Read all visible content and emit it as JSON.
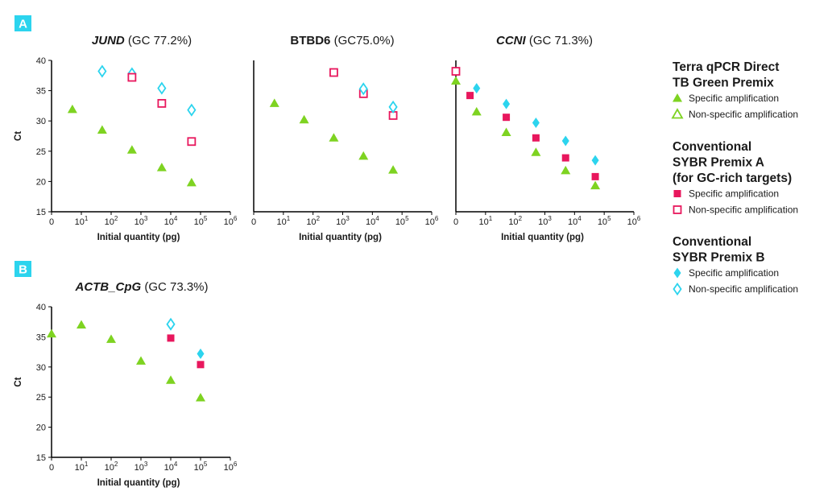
{
  "panels": [
    {
      "label": "A"
    },
    {
      "label": "B"
    }
  ],
  "legend": {
    "groups": [
      {
        "method": "terra",
        "title_lines": [
          "Terra qPCR Direct",
          "TB Green Premix"
        ],
        "entries": [
          {
            "label": "Specific amplification",
            "marker": "triangle",
            "filled": true,
            "color": "#7ed321"
          },
          {
            "label": "Non-specific amplification",
            "marker": "triangle",
            "filled": false,
            "color": "#7ed321"
          }
        ]
      },
      {
        "method": "sybrA",
        "title_lines": [
          "Conventional",
          "SYBR Premix A",
          "(for GC-rich targets)"
        ],
        "entries": [
          {
            "label": "Specific amplification",
            "marker": "square",
            "filled": true,
            "color": "#e8175d"
          },
          {
            "label": "Non-specific amplification",
            "marker": "square",
            "filled": false,
            "color": "#e8175d"
          }
        ]
      },
      {
        "method": "sybrB",
        "title_lines": [
          "Conventional",
          "SYBR Premix B"
        ],
        "entries": [
          {
            "label": "Specific amplification",
            "marker": "diamond",
            "filled": true,
            "color": "#2cd4ee"
          },
          {
            "label": "Non-specific amplification",
            "marker": "diamond",
            "filled": false,
            "color": "#2cd4ee"
          }
        ]
      }
    ]
  },
  "chart_data": [
    {
      "type": "scatter",
      "panel": "A",
      "gene": "JUND",
      "gene_italic": true,
      "gc": "(GC 77.2%)",
      "xlabel": "Initial quantity (pg)",
      "ylabel": "Ct",
      "x_scale": "log",
      "xlim": [
        1,
        1000000
      ],
      "ylim": [
        15,
        40
      ],
      "x_ticks": [
        {
          "value": 1,
          "base": "0",
          "exp": ""
        },
        {
          "value": 10,
          "base": "10",
          "exp": "1"
        },
        {
          "value": 100,
          "base": "10",
          "exp": "2"
        },
        {
          "value": 1000,
          "base": "10",
          "exp": "3"
        },
        {
          "value": 10000,
          "base": "10",
          "exp": "4"
        },
        {
          "value": 100000,
          "base": "10",
          "exp": "5"
        },
        {
          "value": 1000000,
          "base": "10",
          "exp": "6"
        }
      ],
      "y_ticks": [
        15,
        20,
        25,
        30,
        35,
        40
      ],
      "series": [
        {
          "method": "terra",
          "specific": true,
          "points": [
            [
              5,
              31.9
            ],
            [
              50,
              28.5
            ],
            [
              500,
              25.2
            ],
            [
              5000,
              22.3
            ],
            [
              50000,
              19.8
            ]
          ]
        },
        {
          "method": "sybrB",
          "specific": false,
          "points": [
            [
              50,
              38.2
            ],
            [
              500,
              37.8
            ],
            [
              5000,
              35.4
            ],
            [
              50000,
              31.8
            ]
          ]
        },
        {
          "method": "sybrA",
          "specific": false,
          "points": [
            [
              500,
              37.2
            ],
            [
              5000,
              32.9
            ],
            [
              50000,
              26.6
            ]
          ]
        }
      ]
    },
    {
      "type": "scatter",
      "panel": "A",
      "gene": "BTBD6",
      "gene_italic": false,
      "gc": "(GC75.0%)",
      "xlabel": "Initial quantity (pg)",
      "ylabel": "",
      "x_scale": "log",
      "xlim": [
        1,
        1000000
      ],
      "ylim": [
        15,
        40
      ],
      "x_ticks": [
        {
          "value": 1,
          "base": "0",
          "exp": ""
        },
        {
          "value": 10,
          "base": "10",
          "exp": "1"
        },
        {
          "value": 100,
          "base": "10",
          "exp": "2"
        },
        {
          "value": 1000,
          "base": "10",
          "exp": "3"
        },
        {
          "value": 10000,
          "base": "10",
          "exp": "4"
        },
        {
          "value": 100000,
          "base": "10",
          "exp": "5"
        },
        {
          "value": 1000000,
          "base": "10",
          "exp": "6"
        }
      ],
      "y_ticks": [],
      "series": [
        {
          "method": "terra",
          "specific": true,
          "points": [
            [
              5,
              32.9
            ],
            [
              50,
              30.2
            ],
            [
              500,
              27.2
            ],
            [
              5000,
              24.2
            ],
            [
              50000,
              21.9
            ]
          ]
        },
        {
          "method": "sybrA",
          "specific": false,
          "points": [
            [
              500,
              38.0
            ],
            [
              5000,
              34.5
            ],
            [
              50000,
              30.9
            ]
          ]
        },
        {
          "method": "sybrB",
          "specific": false,
          "points": [
            [
              5000,
              35.3
            ],
            [
              50000,
              32.3
            ]
          ]
        }
      ]
    },
    {
      "type": "scatter",
      "panel": "A",
      "gene": "CCNI",
      "gene_italic": true,
      "gc": "(GC 71.3%)",
      "xlabel": "Initial quantity (pg)",
      "ylabel": "",
      "x_scale": "log",
      "xlim": [
        1,
        1000000
      ],
      "ylim": [
        15,
        40
      ],
      "x_ticks": [
        {
          "value": 1,
          "base": "0",
          "exp": ""
        },
        {
          "value": 10,
          "base": "10",
          "exp": "1"
        },
        {
          "value": 100,
          "base": "10",
          "exp": "2"
        },
        {
          "value": 1000,
          "base": "10",
          "exp": "3"
        },
        {
          "value": 10000,
          "base": "10",
          "exp": "4"
        },
        {
          "value": 100000,
          "base": "10",
          "exp": "5"
        },
        {
          "value": 1000000,
          "base": "10",
          "exp": "6"
        }
      ],
      "y_ticks": [],
      "series": [
        {
          "method": "terra",
          "specific": true,
          "points": [
            [
              1,
              36.6
            ],
            [
              5,
              31.5
            ],
            [
              50,
              28.1
            ],
            [
              500,
              24.8
            ],
            [
              5000,
              21.8
            ],
            [
              50000,
              19.3
            ]
          ]
        },
        {
          "method": "sybrB",
          "specific": true,
          "points": [
            [
              5,
              35.4
            ],
            [
              50,
              32.8
            ],
            [
              500,
              29.7
            ],
            [
              5000,
              26.7
            ],
            [
              50000,
              23.5
            ]
          ]
        },
        {
          "method": "sybrA",
          "specific": true,
          "points": [
            [
              3,
              34.2
            ],
            [
              50,
              30.6
            ],
            [
              500,
              27.2
            ],
            [
              5000,
              23.9
            ],
            [
              50000,
              20.8
            ]
          ]
        },
        {
          "method": "sybrA",
          "specific": false,
          "points": [
            [
              1,
              38.2
            ]
          ]
        }
      ]
    },
    {
      "type": "scatter",
      "panel": "B",
      "gene": "ACTB_CpG",
      "gene_italic": true,
      "gc": "(GC 73.3%)",
      "xlabel": "Initial quantity (pg)",
      "ylabel": "Ct",
      "x_scale": "log",
      "xlim": [
        1,
        1000000
      ],
      "ylim": [
        15,
        40
      ],
      "x_ticks": [
        {
          "value": 1,
          "base": "0",
          "exp": ""
        },
        {
          "value": 10,
          "base": "10",
          "exp": "1"
        },
        {
          "value": 100,
          "base": "10",
          "exp": "2"
        },
        {
          "value": 1000,
          "base": "10",
          "exp": "3"
        },
        {
          "value": 10000,
          "base": "10",
          "exp": "4"
        },
        {
          "value": 100000,
          "base": "10",
          "exp": "5"
        },
        {
          "value": 1000000,
          "base": "10",
          "exp": "6"
        }
      ],
      "y_ticks": [
        15,
        20,
        25,
        30,
        35,
        40
      ],
      "series": [
        {
          "method": "terra",
          "specific": true,
          "points": [
            [
              1,
              35.5
            ],
            [
              10,
              37.0
            ],
            [
              100,
              34.6
            ],
            [
              1000,
              31.0
            ],
            [
              10000,
              27.8
            ],
            [
              100000,
              24.9
            ]
          ]
        },
        {
          "method": "sybrB",
          "specific": false,
          "points": [
            [
              10000,
              37.1
            ]
          ]
        },
        {
          "method": "sybrA",
          "specific": true,
          "points": [
            [
              10000,
              34.8
            ],
            [
              100000,
              30.4
            ]
          ]
        },
        {
          "method": "sybrB",
          "specific": true,
          "points": [
            [
              100000,
              32.2
            ]
          ]
        }
      ]
    }
  ]
}
